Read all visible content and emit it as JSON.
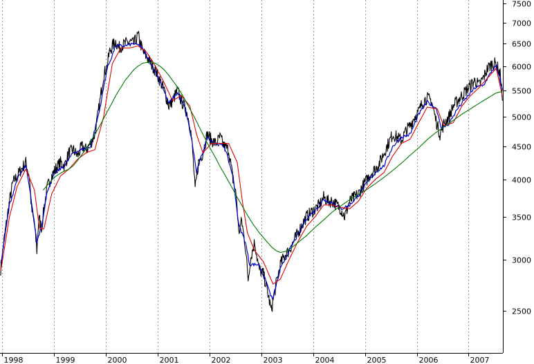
{
  "chart_data": {
    "type": "line",
    "title": "",
    "xlabel": "",
    "ylabel": "",
    "y_scale": "log",
    "ylim": [
      2150,
      7600
    ],
    "xlim": [
      "1997-12-15",
      "2007-08-31"
    ],
    "grid": {
      "vertical": true,
      "horizontal": false
    },
    "x_tick_labels": [
      "1998",
      "1999",
      "2000",
      "2001",
      "2002",
      "2003",
      "2004",
      "2005",
      "2006",
      "2007"
    ],
    "y_tick_labels": [
      "7500",
      "7000",
      "6500",
      "6000",
      "5500",
      "5000",
      "4500",
      "4000",
      "3500",
      "3000",
      "2500"
    ],
    "y_tick_values": [
      7500,
      7000,
      6500,
      6000,
      5500,
      5000,
      4500,
      4000,
      3500,
      3000,
      2500
    ],
    "colors": {
      "price": "#000000",
      "short_ma": "#0000cc",
      "medium_ma": "#dd0000",
      "long_ma": "#007700",
      "grid": "#9a9a9a"
    },
    "series": [
      {
        "style": "price",
        "x": [
          "1997-12-20",
          "1998-01-15",
          "1998-02-20",
          "1998-03-15",
          "1998-04-15",
          "1998-05-15",
          "1998-06-15",
          "1998-07-10",
          "1998-07-25",
          "1998-08-15",
          "1998-09-01",
          "1998-09-15",
          "1998-10-05",
          "1998-10-20",
          "1998-11-15",
          "1998-12-15",
          "1999-01-10",
          "1999-02-15",
          "1999-03-15",
          "1999-04-15",
          "1999-05-15",
          "1999-06-15",
          "1999-07-15",
          "1999-08-15",
          "1999-09-15",
          "1999-10-15",
          "1999-11-15",
          "1999-12-15",
          "2000-01-10",
          "2000-01-25",
          "2000-02-15",
          "2000-03-10",
          "2000-04-01",
          "2000-04-20",
          "2000-05-15",
          "2000-06-15",
          "2000-07-15",
          "2000-08-15",
          "2000-09-01",
          "2000-09-20",
          "2000-10-15",
          "2000-11-15",
          "2000-12-15",
          "2001-01-15",
          "2001-02-15",
          "2001-03-20",
          "2001-04-15",
          "2001-05-20",
          "2001-06-15",
          "2001-07-15",
          "2001-08-15",
          "2001-09-01",
          "2001-09-21",
          "2001-10-15",
          "2001-11-15",
          "2001-12-15",
          "2002-01-15",
          "2002-02-15",
          "2002-03-15",
          "2002-04-15",
          "2002-05-15",
          "2002-06-15",
          "2002-07-10",
          "2002-07-25",
          "2002-08-15",
          "2002-09-10",
          "2002-09-30",
          "2002-10-15",
          "2002-11-15",
          "2002-12-15",
          "2003-01-15",
          "2003-02-10",
          "2003-03-12",
          "2003-04-15",
          "2003-05-15",
          "2003-06-15",
          "2003-07-15",
          "2003-08-15",
          "2003-09-15",
          "2003-10-15",
          "2003-11-15",
          "2003-12-15",
          "2004-01-15",
          "2004-02-15",
          "2004-03-15",
          "2004-04-15",
          "2004-05-15",
          "2004-06-15",
          "2004-07-15",
          "2004-08-10",
          "2004-09-15",
          "2004-10-15",
          "2004-11-15",
          "2004-12-15",
          "2005-01-15",
          "2005-02-15",
          "2005-03-15",
          "2005-04-15",
          "2005-05-15",
          "2005-06-15",
          "2005-07-15",
          "2005-08-15",
          "2005-09-15",
          "2005-10-15",
          "2005-11-15",
          "2005-12-15",
          "2006-01-15",
          "2006-02-15",
          "2006-03-15",
          "2006-04-15",
          "2006-05-10",
          "2006-06-13",
          "2006-07-15",
          "2006-08-15",
          "2006-09-15",
          "2006-10-15",
          "2006-11-15",
          "2006-12-15",
          "2007-01-15",
          "2007-02-15",
          "2007-03-15",
          "2007-04-15",
          "2007-05-15",
          "2007-06-15",
          "2007-07-15",
          "2007-08-15",
          "2007-08-28"
        ],
        "values": [
          2900,
          3250,
          3700,
          3950,
          4050,
          4150,
          4250,
          4050,
          3600,
          3400,
          3100,
          3500,
          3350,
          3600,
          3900,
          4050,
          4150,
          4250,
          4200,
          4400,
          4450,
          4350,
          4500,
          4450,
          4550,
          4700,
          5200,
          5800,
          6000,
          6300,
          6450,
          6550,
          6400,
          6450,
          6500,
          6550,
          6500,
          6700,
          6500,
          6300,
          6200,
          6050,
          5900,
          5700,
          5500,
          5200,
          5300,
          5500,
          5300,
          5150,
          4900,
          4500,
          3850,
          4250,
          4400,
          4700,
          4600,
          4550,
          4650,
          4500,
          4450,
          4000,
          3750,
          3300,
          3450,
          3150,
          2800,
          3000,
          3200,
          2900,
          2850,
          2700,
          2500,
          2750,
          2950,
          3050,
          3100,
          3200,
          3300,
          3400,
          3500,
          3550,
          3600,
          3650,
          3750,
          3700,
          3700,
          3650,
          3600,
          3500,
          3700,
          3750,
          3800,
          3900,
          4000,
          4100,
          4150,
          4250,
          4400,
          4550,
          4700,
          4650,
          4600,
          4750,
          4850,
          5000,
          5100,
          5300,
          5350,
          5300,
          5000,
          4700,
          4900,
          5000,
          5200,
          5300,
          5400,
          5500,
          5600,
          5700,
          5600,
          5750,
          5950,
          6050,
          6050,
          5800,
          5300
        ]
      },
      {
        "style": "short_ma",
        "x": [
          "1997-12-20",
          "1998-02-20",
          "1998-04-15",
          "1998-06-15",
          "1998-07-25",
          "1998-09-01",
          "1998-10-05",
          "1998-11-15",
          "1999-01-10",
          "1999-03-15",
          "1999-05-15",
          "1999-07-15",
          "1999-09-15",
          "1999-11-15",
          "2000-01-10",
          "2000-03-10",
          "2000-05-15",
          "2000-07-15",
          "2000-09-01",
          "2000-11-15",
          "2001-01-15",
          "2001-03-20",
          "2001-05-20",
          "2001-07-15",
          "2001-09-01",
          "2001-10-01",
          "2001-12-15",
          "2002-02-15",
          "2002-04-15",
          "2002-06-15",
          "2002-07-25",
          "2002-09-10",
          "2002-10-10",
          "2002-12-15",
          "2003-02-10",
          "2003-03-20",
          "2003-05-15",
          "2003-07-15",
          "2003-09-15",
          "2003-11-15",
          "2004-01-15",
          "2004-03-15",
          "2004-05-15",
          "2004-07-15",
          "2004-09-15",
          "2004-11-15",
          "2005-01-15",
          "2005-03-15",
          "2005-05-15",
          "2005-07-15",
          "2005-09-15",
          "2005-11-15",
          "2006-01-15",
          "2006-03-15",
          "2006-05-20",
          "2006-06-25",
          "2006-08-15",
          "2006-10-15",
          "2006-12-15",
          "2007-02-15",
          "2007-04-15",
          "2007-06-15",
          "2007-07-15",
          "2007-08-28"
        ],
        "values": [
          2950,
          3650,
          4000,
          4200,
          3700,
          3200,
          3400,
          3850,
          4100,
          4200,
          4400,
          4450,
          4500,
          5100,
          5950,
          6450,
          6450,
          6500,
          6450,
          6050,
          5700,
          5250,
          5450,
          5150,
          4550,
          4100,
          4650,
          4550,
          4500,
          4050,
          3400,
          3200,
          2950,
          2950,
          2750,
          2600,
          2900,
          3100,
          3280,
          3480,
          3580,
          3720,
          3680,
          3600,
          3650,
          3780,
          3950,
          4100,
          4200,
          4500,
          4650,
          4700,
          5050,
          5280,
          5150,
          4800,
          4880,
          5150,
          5350,
          5550,
          5600,
          5900,
          6000,
          5500
        ]
      },
      {
        "style": "medium_ma",
        "x": [
          "1997-12-20",
          "1998-02-20",
          "1998-04-15",
          "1998-06-15",
          "1998-08-15",
          "1998-09-20",
          "1998-10-20",
          "1998-12-15",
          "1999-02-15",
          "1999-04-15",
          "1999-06-15",
          "1999-08-15",
          "1999-10-15",
          "1999-12-15",
          "2000-02-15",
          "2000-04-15",
          "2000-06-15",
          "2000-08-15",
          "2000-10-15",
          "2000-12-15",
          "2001-02-15",
          "2001-04-15",
          "2001-06-15",
          "2001-08-15",
          "2001-10-01",
          "2001-11-15",
          "2002-01-15",
          "2002-03-15",
          "2002-05-15",
          "2002-07-15",
          "2002-08-20",
          "2002-09-25",
          "2002-11-15",
          "2003-01-15",
          "2003-03-25",
          "2003-05-15",
          "2003-07-15",
          "2003-09-15",
          "2003-11-15",
          "2004-01-15",
          "2004-03-15",
          "2004-05-15",
          "2004-07-15",
          "2004-09-15",
          "2004-11-15",
          "2005-01-15",
          "2005-03-15",
          "2005-05-15",
          "2005-07-15",
          "2005-09-15",
          "2005-11-15",
          "2006-01-15",
          "2006-03-15",
          "2006-05-25",
          "2006-07-10",
          "2006-09-15",
          "2006-11-15",
          "2007-01-15",
          "2007-03-15",
          "2007-05-15",
          "2007-07-15",
          "2007-08-28"
        ],
        "values": [
          2880,
          3500,
          3900,
          4150,
          3850,
          3350,
          3350,
          3800,
          4050,
          4150,
          4300,
          4400,
          4450,
          5000,
          6050,
          6400,
          6400,
          6450,
          6300,
          6000,
          5650,
          5300,
          5400,
          5200,
          4700,
          4400,
          4550,
          4550,
          4550,
          4250,
          3700,
          3300,
          3100,
          2980,
          2750,
          2800,
          3000,
          3200,
          3380,
          3500,
          3650,
          3650,
          3620,
          3600,
          3700,
          3880,
          4000,
          4100,
          4350,
          4550,
          4620,
          4900,
          5180,
          5150,
          4850,
          4900,
          5200,
          5400,
          5550,
          5750,
          5950,
          5380
        ]
      },
      {
        "style": "long_ma",
        "x": [
          "1998-10-15",
          "1998-11-15",
          "1998-12-15",
          "1999-01-15",
          "1999-02-15",
          "1999-03-15",
          "1999-04-15",
          "1999-05-15",
          "1999-06-15",
          "1999-07-15",
          "1999-08-15",
          "1999-09-15",
          "1999-10-15",
          "1999-11-15",
          "1999-12-15",
          "2000-01-15",
          "2000-02-15",
          "2000-03-15",
          "2000-04-15",
          "2000-05-15",
          "2000-06-15",
          "2000-07-15",
          "2000-08-15",
          "2000-09-15",
          "2000-10-15",
          "2000-11-15",
          "2000-12-15",
          "2001-01-15",
          "2001-02-15",
          "2001-03-15",
          "2001-04-15",
          "2001-05-15",
          "2001-06-15",
          "2001-07-15",
          "2001-08-15",
          "2001-09-15",
          "2001-10-15",
          "2001-11-15",
          "2001-12-15",
          "2002-01-15",
          "2002-02-15",
          "2002-03-15",
          "2002-04-15",
          "2002-05-15",
          "2002-06-15",
          "2002-07-15",
          "2002-08-15",
          "2002-09-15",
          "2002-10-15",
          "2002-11-15",
          "2002-12-15",
          "2003-01-15",
          "2003-02-15",
          "2003-03-15",
          "2003-04-15",
          "2003-05-15",
          "2003-06-15",
          "2003-07-15",
          "2003-08-15",
          "2003-09-15",
          "2003-10-15",
          "2003-11-15",
          "2003-12-15",
          "2004-01-15",
          "2004-03-15",
          "2004-05-15",
          "2004-07-15",
          "2004-09-15",
          "2004-11-15",
          "2005-01-15",
          "2005-03-15",
          "2005-05-15",
          "2005-07-15",
          "2005-09-15",
          "2005-11-15",
          "2006-01-15",
          "2006-03-15",
          "2006-05-15",
          "2006-07-15",
          "2006-09-15",
          "2006-11-15",
          "2007-01-15",
          "2007-03-15",
          "2007-05-15",
          "2007-07-15",
          "2007-08-28"
        ],
        "values": [
          3850,
          3920,
          3990,
          4050,
          4090,
          4120,
          4150,
          4200,
          4280,
          4370,
          4470,
          4580,
          4700,
          4830,
          4970,
          5120,
          5270,
          5420,
          5560,
          5700,
          5810,
          5920,
          6000,
          6060,
          6080,
          6080,
          6060,
          6000,
          5920,
          5820,
          5700,
          5580,
          5450,
          5300,
          5150,
          5000,
          4850,
          4700,
          4560,
          4430,
          4310,
          4190,
          4080,
          3970,
          3860,
          3750,
          3650,
          3550,
          3460,
          3380,
          3310,
          3250,
          3190,
          3140,
          3100,
          3080,
          3090,
          3110,
          3150,
          3190,
          3230,
          3270,
          3320,
          3370,
          3460,
          3560,
          3640,
          3720,
          3790,
          3860,
          3940,
          4030,
          4130,
          4240,
          4360,
          4480,
          4610,
          4730,
          4830,
          4940,
          5050,
          5150,
          5250,
          5350,
          5450,
          5480
        ]
      }
    ]
  }
}
